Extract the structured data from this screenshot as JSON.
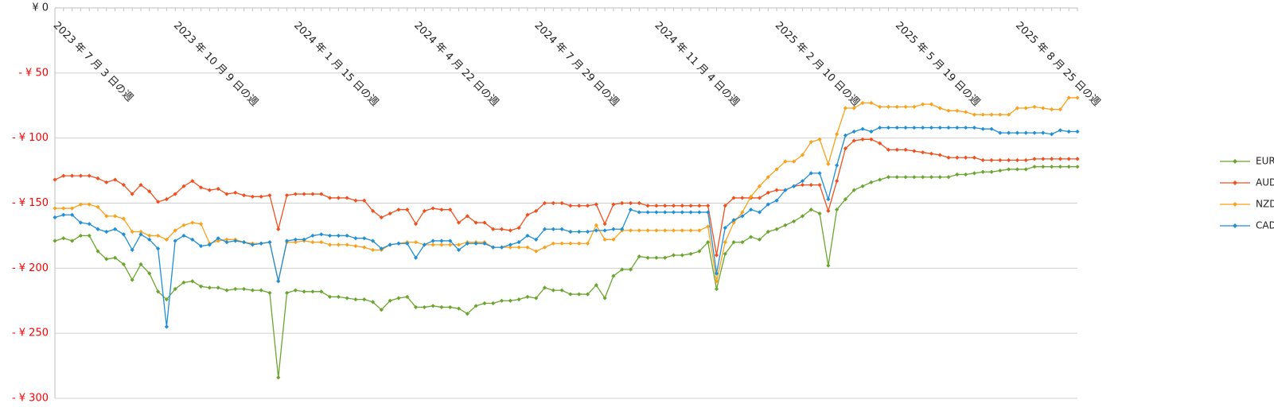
{
  "chart_data": {
    "type": "line",
    "categories": [
      "2023 年 7 月 3 日の週",
      null,
      null,
      null,
      null,
      null,
      null,
      null,
      null,
      null,
      null,
      null,
      null,
      null,
      "2023 年 10 月 9 日の週",
      null,
      null,
      null,
      null,
      null,
      null,
      null,
      null,
      null,
      null,
      null,
      null,
      null,
      "2024 年 1 月 15 日の週",
      null,
      null,
      null,
      null,
      null,
      null,
      null,
      null,
      null,
      null,
      null,
      null,
      null,
      "2024 年 4 月 22 日の週",
      null,
      null,
      null,
      null,
      null,
      null,
      null,
      null,
      null,
      null,
      null,
      null,
      null,
      "2024 年 7 月 29 日の週",
      null,
      null,
      null,
      null,
      null,
      null,
      null,
      null,
      null,
      null,
      null,
      null,
      null,
      "2024 年 11 月 4 日の週",
      null,
      null,
      null,
      null,
      null,
      null,
      null,
      null,
      null,
      null,
      null,
      null,
      null,
      "2025 年 2 月 10 日の週",
      null,
      null,
      null,
      null,
      null,
      null,
      null,
      null,
      null,
      null,
      null,
      null,
      null,
      "2025 年 5 月 19 日の週",
      null,
      null,
      null,
      null,
      null,
      null,
      null,
      null,
      null,
      null,
      null,
      null,
      null,
      "2025 年 8 月 25 日の週",
      null,
      null,
      null,
      null,
      null,
      null,
      null
    ],
    "series": [
      {
        "name": "EUR/JPY",
        "color": "#6aa62e",
        "values": [
          -179,
          -177,
          -179,
          -175,
          -175,
          -187,
          -193,
          -192,
          -197,
          -209,
          -197,
          -204,
          -218,
          -224,
          -216,
          -211,
          -210,
          -214,
          -215,
          -215,
          -217,
          -216,
          -216,
          -217,
          -217,
          -219,
          -284,
          -219,
          -217,
          -218,
          -218,
          -218,
          -222,
          -222,
          -223,
          -224,
          -224,
          -226,
          -232,
          -225,
          -223,
          -222,
          -230,
          -230,
          -229,
          -230,
          -230,
          -231,
          -235,
          -229,
          -227,
          -227,
          -225,
          -225,
          -224,
          -222,
          -223,
          -215,
          -217,
          -217,
          -220,
          -220,
          -220,
          -213,
          -223,
          -206,
          -201,
          -201,
          -191,
          -192,
          -192,
          -192,
          -190,
          -190,
          -189,
          -187,
          -180,
          -216,
          -189,
          -180,
          -180,
          -176,
          -178,
          -172,
          -170,
          -167,
          -164,
          -160,
          -155,
          -158,
          -198,
          -155,
          -147,
          -140,
          -137,
          -134,
          -132,
          -130,
          -130,
          -130,
          -130,
          -130,
          -130,
          -130,
          -130,
          -128,
          -128,
          -127,
          -126,
          -126,
          -125,
          -124,
          -124,
          -124,
          -122,
          -122,
          -122,
          -122,
          -122,
          -122
        ]
      },
      {
        "name": "AUD/JPY",
        "color": "#f0501e",
        "values": [
          -132,
          -129,
          -129,
          -129,
          -129,
          -131,
          -134,
          -132,
          -136,
          -143,
          -136,
          -141,
          -149,
          -147,
          -143,
          -137,
          -133,
          -138,
          -140,
          -139,
          -143,
          -142,
          -144,
          -145,
          -145,
          -144,
          -170,
          -144,
          -143,
          -143,
          -143,
          -143,
          -146,
          -146,
          -146,
          -148,
          -148,
          -156,
          -161,
          -158,
          -155,
          -155,
          -166,
          -156,
          -154,
          -155,
          -155,
          -165,
          -160,
          -165,
          -165,
          -170,
          -170,
          -171,
          -169,
          -159,
          -156,
          -150,
          -150,
          -150,
          -152,
          -152,
          -152,
          -151,
          -166,
          -151,
          -150,
          -150,
          -150,
          -152,
          -152,
          -152,
          -152,
          -152,
          -152,
          -152,
          -152,
          -190,
          -152,
          -146,
          -146,
          -146,
          -146,
          -142,
          -140,
          -140,
          -137,
          -136,
          -136,
          -136,
          -156,
          -133,
          -108,
          -102,
          -101,
          -101,
          -104,
          -109,
          -109,
          -109,
          -110,
          -111,
          -112,
          -113,
          -115,
          -115,
          -115,
          -115,
          -117,
          -117,
          -117,
          -117,
          -117,
          -117,
          -116,
          -116,
          -116,
          -116,
          -116,
          -116
        ]
      },
      {
        "name": "NZD/JPY",
        "color": "#f9a11b",
        "values": [
          -154,
          -154,
          -154,
          -151,
          -151,
          -153,
          -160,
          -160,
          -162,
          -172,
          -172,
          -175,
          -175,
          -178,
          -171,
          -167,
          -165,
          -166,
          -181,
          -179,
          -178,
          -178,
          -180,
          -181,
          -181,
          -180,
          -210,
          -180,
          -180,
          -179,
          -180,
          -180,
          -182,
          -182,
          -182,
          -183,
          -184,
          -186,
          -186,
          -182,
          -181,
          -180,
          -180,
          -182,
          -182,
          -182,
          -182,
          -182,
          -180,
          -180,
          -180,
          -184,
          -184,
          -184,
          -184,
          -184,
          -187,
          -184,
          -181,
          -181,
          -181,
          -181,
          -181,
          -167,
          -178,
          -178,
          -171,
          -171,
          -171,
          -171,
          -171,
          -171,
          -171,
          -171,
          -171,
          -171,
          -168,
          -210,
          -180,
          -165,
          -157,
          -145,
          -137,
          -130,
          -124,
          -118,
          -118,
          -113,
          -103,
          -101,
          -120,
          -97,
          -77,
          -77,
          -73,
          -73,
          -76,
          -76,
          -76,
          -76,
          -76,
          -74,
          -74,
          -77,
          -79,
          -79,
          -80,
          -82,
          -82,
          -82,
          -82,
          -82,
          -77,
          -77,
          -76,
          -77,
          -78,
          -78,
          -69,
          -69
        ]
      },
      {
        "name": "CAD/JPY",
        "color": "#1f8fd6",
        "values": [
          -161,
          -159,
          -159,
          -165,
          -166,
          -170,
          -172,
          -170,
          -174,
          -186,
          -174,
          -178,
          -185,
          -245,
          -179,
          -175,
          -178,
          -183,
          -182,
          -177,
          -180,
          -179,
          -180,
          -182,
          -181,
          -180,
          -210,
          -179,
          -178,
          -178,
          -175,
          -174,
          -175,
          -175,
          -175,
          -177,
          -177,
          -179,
          -185,
          -182,
          -181,
          -181,
          -192,
          -182,
          -179,
          -179,
          -179,
          -186,
          -181,
          -181,
          -181,
          -184,
          -184,
          -182,
          -180,
          -175,
          -178,
          -170,
          -170,
          -170,
          -172,
          -172,
          -172,
          -171,
          -171,
          -170,
          -170,
          -155,
          -157,
          -157,
          -157,
          -157,
          -157,
          -157,
          -157,
          -157,
          -157,
          -204,
          -169,
          -163,
          -160,
          -155,
          -157,
          -151,
          -148,
          -140,
          -137,
          -133,
          -127,
          -127,
          -147,
          -121,
          -98,
          -95,
          -93,
          -95,
          -92,
          -92,
          -92,
          -92,
          -92,
          -92,
          -92,
          -92,
          -92,
          -92,
          -92,
          -92,
          -93,
          -93,
          -96,
          -96,
          -96,
          -96,
          -96,
          -96,
          -97,
          -94,
          -95,
          -95
        ]
      }
    ],
    "ylim": [
      -300,
      0
    ],
    "yticks": [
      {
        "value": -300,
        "label": "- ¥ 300"
      },
      {
        "value": -250,
        "label": "- ¥ 250"
      },
      {
        "value": -200,
        "label": "- ¥ 200"
      },
      {
        "value": -150,
        "label": "- ¥ 150"
      },
      {
        "value": -100,
        "label": "- ¥ 100"
      },
      {
        "value": -50,
        "label": "- ¥ 50"
      },
      {
        "value": 0,
        "label": "¥ 0"
      }
    ],
    "negative_tick_color": "#ff0000",
    "grid": true,
    "legend": "right"
  }
}
